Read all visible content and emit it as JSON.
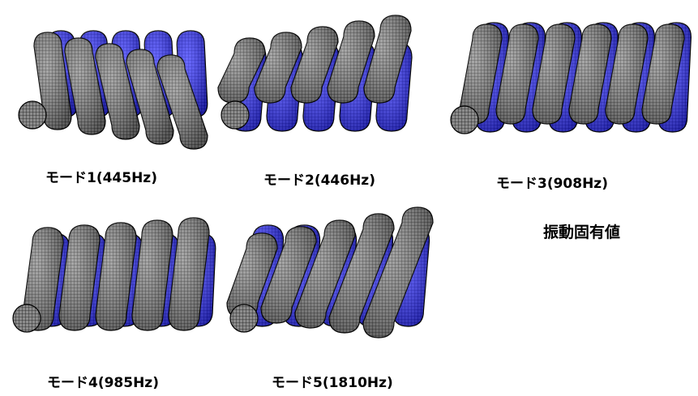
{
  "title": "振動固有値",
  "colors": {
    "deformed_fill": "#8c8c8c",
    "deformed_mesh": "#1a1a1a",
    "original_fill": "#2b2bff",
    "original_mesh": "#0000c8"
  },
  "modes": [
    {
      "label": "モード1(445Hz)"
    },
    {
      "label": "モード2(446Hz)"
    },
    {
      "label": "モード3(908Hz)"
    },
    {
      "label": "モード4(985Hz)"
    },
    {
      "label": "モード5(1810Hz)"
    }
  ]
}
